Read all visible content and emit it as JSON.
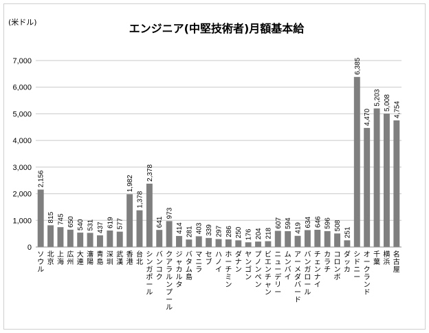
{
  "chart_data": {
    "type": "bar",
    "title": "エンジニア(中堅技術者)月額基本給",
    "unit_label": "(米ドル)",
    "ylim": [
      0,
      7000
    ],
    "yticks": [
      "0",
      "1,000",
      "2,000",
      "3,000",
      "4,000",
      "5,000",
      "6,000",
      "7,000"
    ],
    "grid": true,
    "bar_color": "#7f7f7f",
    "categories": [
      "ソウル",
      "北京",
      "上海",
      "広州",
      "大連",
      "瀋陽",
      "青島",
      "深圳",
      "武漢",
      "香港",
      "台北",
      "シンガポール",
      "バンコク",
      "クアラルンプール",
      "ジャカルタ",
      "バタム島",
      "マニラ",
      "セブ",
      "ハノイ",
      "ホーチミン",
      "ダナン",
      "ヤンゴン",
      "プノンペン",
      "ビエンチャン",
      "ニューデリー",
      "ムンバイ",
      "アーメダバード",
      "バンガロール",
      "チェンナイ",
      "カラチ",
      "コロンボ",
      "ダッカ",
      "シドニー",
      "オークランド",
      "千葉",
      "横浜",
      "名古屋"
    ],
    "values": [
      2156,
      815,
      745,
      650,
      540,
      531,
      437,
      619,
      577,
      1982,
      1378,
      2378,
      641,
      973,
      414,
      281,
      403,
      339,
      297,
      286,
      250,
      176,
      204,
      218,
      607,
      594,
      419,
      634,
      646,
      596,
      508,
      251,
      6385,
      4470,
      5203,
      5008,
      4754
    ],
    "value_labels": [
      "2,156",
      "815",
      "745",
      "650",
      "540",
      "531",
      "437",
      "619",
      "577",
      "1,982",
      "1,378",
      "2,378",
      "641",
      "973",
      "414",
      "281",
      "403",
      "339",
      "297",
      "286",
      "250",
      "176",
      "204",
      "218",
      "607",
      "594",
      "419",
      "634",
      "646",
      "596",
      "508",
      "251",
      "6,385",
      "4,470",
      "5,203",
      "5,008",
      "4,754"
    ]
  }
}
